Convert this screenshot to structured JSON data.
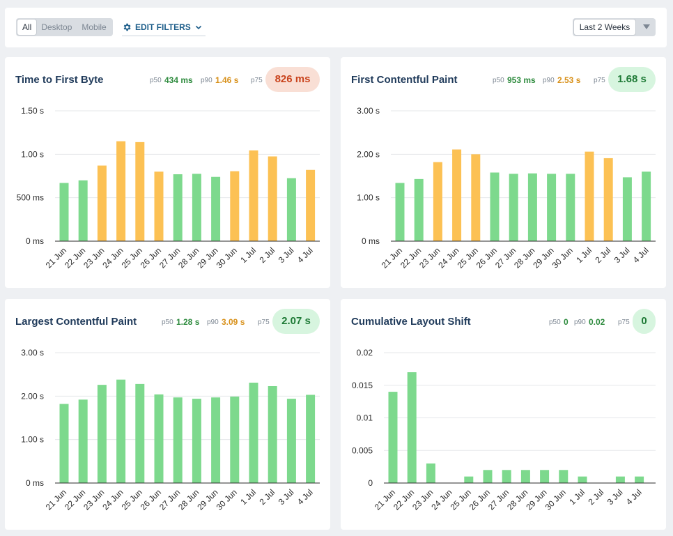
{
  "filters": {
    "devices": [
      "All",
      "Desktop",
      "Mobile"
    ],
    "active_device": "All",
    "edit_label": "EDIT FILTERS",
    "date_range": "Last 2 Weeks"
  },
  "colors": {
    "good": "#7dd98d",
    "needs_improvement": "#fcc154",
    "grid": "#e5e7ea",
    "axis": "#2b2b2b"
  },
  "icons": [
    "gear-icon",
    "chevron-down-icon",
    "caret-down-icon"
  ],
  "cards": [
    {
      "title": "Time to First Byte",
      "p50_label": "p50",
      "p50": "434 ms",
      "p90_label": "p90",
      "p90": "1.46 s",
      "p75_label": "p75",
      "p75": "826 ms",
      "p75_status": "bad"
    },
    {
      "title": "First Contentful Paint",
      "p50_label": "p50",
      "p50": "953 ms",
      "p90_label": "p90",
      "p90": "2.53 s",
      "p75_label": "p75",
      "p75": "1.68 s",
      "p75_status": "good"
    },
    {
      "title": "Largest Contentful Paint",
      "p50_label": "p50",
      "p50": "1.28 s",
      "p90_label": "p90",
      "p90": "3.09 s",
      "p75_label": "p75",
      "p75": "2.07 s",
      "p75_status": "good"
    },
    {
      "title": "Cumulative Layout Shift",
      "p50_label": "p50",
      "p50": "0",
      "p90_label": "p90",
      "p90": "0.02",
      "p75_label": "p75",
      "p75": "0",
      "p75_status": "good"
    }
  ],
  "chart_data": [
    {
      "type": "bar",
      "categories": [
        "21 Jun",
        "22 Jun",
        "23 Jun",
        "24 Jun",
        "25 Jun",
        "26 Jun",
        "27 Jun",
        "28 Jun",
        "29 Jun",
        "30 Jun",
        "1 Jul",
        "2 Jul",
        "3 Jul",
        "4 Jul"
      ],
      "values": [
        670,
        700,
        870,
        1150,
        1140,
        800,
        770,
        775,
        740,
        805,
        1045,
        975,
        725,
        820
      ],
      "ylim": [
        0,
        1500
      ],
      "yticks": [
        0,
        500,
        1000,
        1500
      ],
      "ytick_labels": [
        "0 ms",
        "500 ms",
        "1.00 s",
        "1.50 s"
      ],
      "bar_status": [
        "good",
        "good",
        "needs_improvement",
        "needs_improvement",
        "needs_improvement",
        "needs_improvement",
        "good",
        "good",
        "good",
        "needs_improvement",
        "needs_improvement",
        "needs_improvement",
        "good",
        "needs_improvement"
      ],
      "grid": true
    },
    {
      "type": "bar",
      "categories": [
        "21 Jun",
        "22 Jun",
        "23 Jun",
        "24 Jun",
        "25 Jun",
        "26 Jun",
        "27 Jun",
        "28 Jun",
        "29 Jun",
        "30 Jun",
        "1 Jul",
        "2 Jul",
        "3 Jul",
        "4 Jul"
      ],
      "values": [
        1.34,
        1.43,
        1.82,
        2.11,
        2.0,
        1.58,
        1.55,
        1.56,
        1.55,
        1.55,
        2.06,
        1.91,
        1.47,
        1.6
      ],
      "ylim": [
        0,
        3
      ],
      "yticks": [
        0,
        1,
        2,
        3
      ],
      "ytick_labels": [
        "0 ms",
        "1.00 s",
        "2.00 s",
        "3.00 s"
      ],
      "bar_status": [
        "good",
        "good",
        "needs_improvement",
        "needs_improvement",
        "needs_improvement",
        "good",
        "good",
        "good",
        "good",
        "good",
        "needs_improvement",
        "needs_improvement",
        "good",
        "good"
      ],
      "grid": true
    },
    {
      "type": "bar",
      "categories": [
        "21 Jun",
        "22 Jun",
        "23 Jun",
        "24 Jun",
        "25 Jun",
        "26 Jun",
        "27 Jun",
        "28 Jun",
        "29 Jun",
        "30 Jun",
        "1 Jul",
        "2 Jul",
        "3 Jul",
        "4 Jul"
      ],
      "values": [
        1.82,
        1.92,
        2.26,
        2.38,
        2.28,
        2.04,
        1.97,
        1.94,
        1.97,
        1.99,
        2.31,
        2.23,
        1.94,
        2.03
      ],
      "ylim": [
        0,
        3
      ],
      "yticks": [
        0,
        1,
        2,
        3
      ],
      "ytick_labels": [
        "0 ms",
        "1.00 s",
        "2.00 s",
        "3.00 s"
      ],
      "bar_status": [
        "good",
        "good",
        "good",
        "good",
        "good",
        "good",
        "good",
        "good",
        "good",
        "good",
        "good",
        "good",
        "good",
        "good"
      ],
      "grid": true
    },
    {
      "type": "bar",
      "categories": [
        "21 Jun",
        "22 Jun",
        "23 Jun",
        "24 Jun",
        "25 Jun",
        "26 Jun",
        "27 Jun",
        "28 Jun",
        "29 Jun",
        "30 Jun",
        "1 Jul",
        "2 Jul",
        "3 Jul",
        "4 Jul"
      ],
      "values": [
        0.014,
        0.017,
        0.003,
        0,
        0.001,
        0.002,
        0.002,
        0.002,
        0.002,
        0.002,
        0.001,
        0,
        0.001,
        0.001
      ],
      "ylim": [
        0,
        0.02
      ],
      "yticks": [
        0,
        0.005,
        0.01,
        0.015,
        0.02
      ],
      "ytick_labels": [
        "0",
        "0.005",
        "0.01",
        "0.015",
        "0.02"
      ],
      "bar_status": [
        "good",
        "good",
        "good",
        "good",
        "good",
        "good",
        "good",
        "good",
        "good",
        "good",
        "good",
        "good",
        "good",
        "good"
      ],
      "grid": true
    }
  ]
}
